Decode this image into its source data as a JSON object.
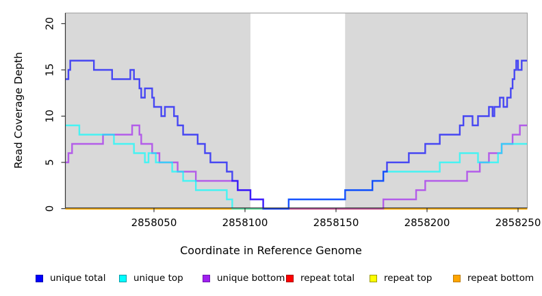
{
  "figure": {
    "kind": "coverage step plot",
    "background_color": "#ffffff",
    "plot_background_color": "#d9d9d9",
    "box_border_color": "#999999",
    "axis_line_color": "#333333"
  },
  "axes": {
    "x": {
      "label": "Coordinate in Reference Genome",
      "tick_labels": [
        "2858050",
        "2858100",
        "2858150",
        "2858200",
        "2858250"
      ]
    },
    "y": {
      "label": "Read Coverage Depth",
      "tick_labels": [
        "0",
        "5",
        "10",
        "15",
        "20"
      ]
    }
  },
  "chart_data": {
    "type": "line",
    "subtype": "step",
    "title": "",
    "xlabel": "Coordinate in Reference Genome",
    "ylabel": "Read Coverage Depth",
    "x_ticks": [
      2858050,
      2858100,
      2858150,
      2858200,
      2858250
    ],
    "y_ticks": [
      0,
      5,
      10,
      15,
      20
    ],
    "x_range": [
      2858001,
      2858256
    ],
    "y_range": [
      0,
      21
    ],
    "x_end": 2858256,
    "grid": false,
    "legend_position": "bottom",
    "highlight_region": {
      "x_start": 2858103,
      "x_end": 2858155,
      "color": "#ffffff",
      "note": "unshaded band over repeat region; flanks shaded gray"
    },
    "series": [
      {
        "name": "unique total",
        "color": "#0000ff",
        "swatch_border": "#0000b0",
        "steps": [
          [
            2858001,
            14
          ],
          [
            2858003,
            15
          ],
          [
            2858004,
            16
          ],
          [
            2858017,
            15
          ],
          [
            2858027,
            14
          ],
          [
            2858037,
            15
          ],
          [
            2858039,
            14
          ],
          [
            2858042,
            13
          ],
          [
            2858043,
            12
          ],
          [
            2858045,
            13
          ],
          [
            2858049,
            12
          ],
          [
            2858050,
            11
          ],
          [
            2858054,
            10
          ],
          [
            2858056,
            11
          ],
          [
            2858061,
            10
          ],
          [
            2858063,
            9
          ],
          [
            2858066,
            8
          ],
          [
            2858074,
            7
          ],
          [
            2858078,
            6
          ],
          [
            2858081,
            5
          ],
          [
            2858090,
            4
          ],
          [
            2858093,
            3
          ],
          [
            2858096,
            2
          ],
          [
            2858103,
            1
          ],
          [
            2858110,
            0
          ],
          [
            2858124,
            1
          ],
          [
            2858155,
            2
          ],
          [
            2858170,
            3
          ],
          [
            2858176,
            4
          ],
          [
            2858178,
            5
          ],
          [
            2858190,
            6
          ],
          [
            2858199,
            7
          ],
          [
            2858207,
            8
          ],
          [
            2858218,
            9
          ],
          [
            2858220,
            10
          ],
          [
            2858225,
            9
          ],
          [
            2858228,
            10
          ],
          [
            2858234,
            11
          ],
          [
            2858236,
            10
          ],
          [
            2858237,
            11
          ],
          [
            2858240,
            12
          ],
          [
            2858242,
            11
          ],
          [
            2858244,
            12
          ],
          [
            2858246,
            13
          ],
          [
            2858247,
            14
          ],
          [
            2858248,
            15
          ],
          [
            2858249,
            16
          ],
          [
            2858250,
            15
          ],
          [
            2858252,
            16
          ]
        ]
      },
      {
        "name": "unique top",
        "color": "#00ffff",
        "swatch_border": "#009aa8",
        "steps": [
          [
            2858001,
            9
          ],
          [
            2858009,
            8
          ],
          [
            2858028,
            7
          ],
          [
            2858039,
            6
          ],
          [
            2858045,
            5
          ],
          [
            2858047,
            6
          ],
          [
            2858051,
            5
          ],
          [
            2858060,
            4
          ],
          [
            2858066,
            3
          ],
          [
            2858073,
            2
          ],
          [
            2858090,
            1
          ],
          [
            2858093,
            0
          ],
          [
            2858124,
            1
          ],
          [
            2858155,
            2
          ],
          [
            2858170,
            3
          ],
          [
            2858176,
            4
          ],
          [
            2858207,
            5
          ],
          [
            2858218,
            6
          ],
          [
            2858228,
            5
          ],
          [
            2858239,
            6
          ],
          [
            2858241,
            7
          ]
        ]
      },
      {
        "name": "unique bottom",
        "color": "#a020f0",
        "swatch_border": "#6e16ae",
        "steps": [
          [
            2858001,
            5
          ],
          [
            2858003,
            6
          ],
          [
            2858005,
            7
          ],
          [
            2858022,
            8
          ],
          [
            2858038,
            9
          ],
          [
            2858042,
            8
          ],
          [
            2858043,
            7
          ],
          [
            2858049,
            6
          ],
          [
            2858053,
            5
          ],
          [
            2858063,
            4
          ],
          [
            2858073,
            3
          ],
          [
            2858096,
            2
          ],
          [
            2858103,
            1
          ],
          [
            2858110,
            0
          ],
          [
            2858176,
            1
          ],
          [
            2858194,
            2
          ],
          [
            2858199,
            3
          ],
          [
            2858222,
            4
          ],
          [
            2858229,
            5
          ],
          [
            2858234,
            6
          ],
          [
            2858241,
            7
          ],
          [
            2858247,
            8
          ],
          [
            2858251,
            9
          ]
        ]
      },
      {
        "name": "repeat total",
        "color": "#ff0000",
        "swatch_border": "#a80000",
        "steps": [
          [
            2858000,
            0
          ]
        ]
      },
      {
        "name": "repeat top",
        "color": "#ffff00",
        "swatch_border": "#9a9a00",
        "steps": [
          [
            2858000,
            0
          ]
        ]
      },
      {
        "name": "repeat bottom",
        "color": "#ffa500",
        "swatch_border": "#bd7a00",
        "steps": [
          [
            2858000,
            0
          ]
        ]
      }
    ]
  }
}
